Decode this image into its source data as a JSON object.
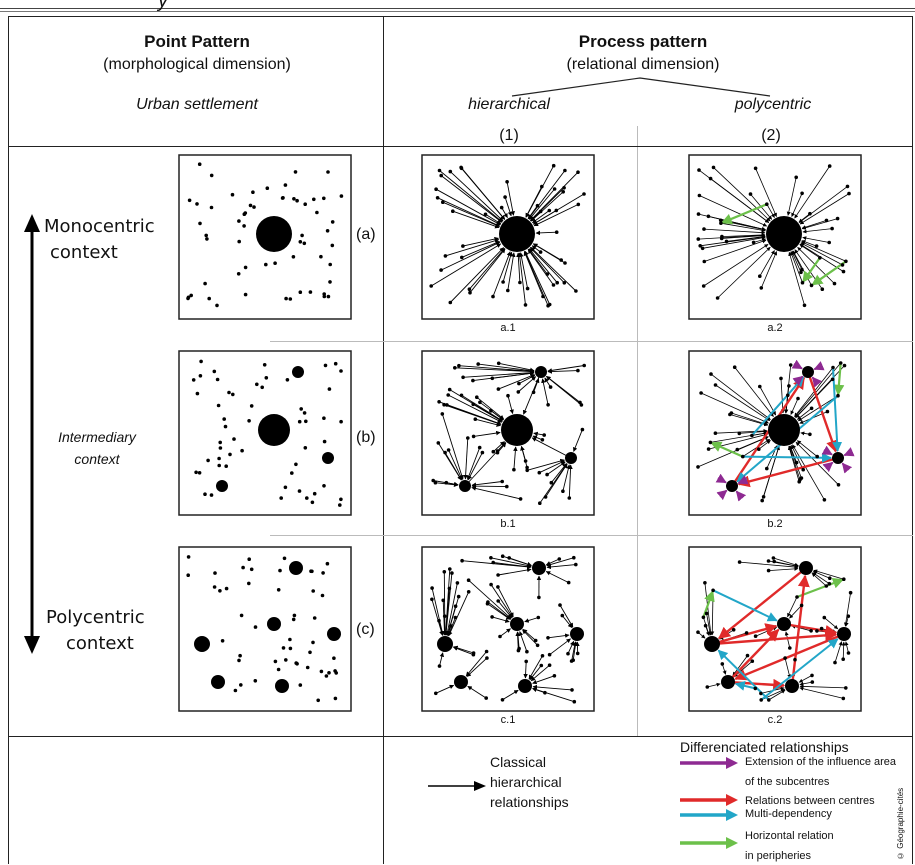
{
  "header": {
    "top_cut_text": "y",
    "point_title": "Point Pattern",
    "point_subtitle": "(morphological dimension)",
    "point_italic": "Urban settlement",
    "process_title": "Process pattern",
    "process_subtitle": "(relational dimension)",
    "hierarchical": "hierarchical",
    "polycentric": "polycentric",
    "col1": "(1)",
    "col2": "(2)"
  },
  "rows": [
    {
      "context_line1": "Monocentric",
      "context_line2": "context",
      "row_label": "(a)",
      "sub1": "a.1",
      "sub2": "a.2"
    },
    {
      "context_line1": "Intermediary",
      "context_line2": "context",
      "row_label": "(b)",
      "sub1": "b.1",
      "sub2": "b.2"
    },
    {
      "context_line1": "Polycentric",
      "context_line2": "context",
      "row_label": "(c)",
      "sub1": "c.1",
      "sub2": "c.2"
    }
  ],
  "legend": {
    "classical_line1": "Classical",
    "classical_line2": "hierarchical",
    "classical_line3": "relationships",
    "diff_title": "Differenciated relationships",
    "item_purple_1": "Extension of the influence area",
    "item_purple_2": "of the subcentres",
    "item_red": "Relations between centres",
    "item_blue": "Multi-dependency",
    "item_green_1": "Horizontal relation",
    "item_green_2": "in peripheries",
    "credit": "© Géographie-cités"
  },
  "colors": {
    "purple": "#8e2a92",
    "red": "#e02a2a",
    "blue": "#22a6c8",
    "green": "#6cc04a",
    "black": "#000000"
  },
  "icons": {
    "context_axis": "double-headed-arrow-icon",
    "classical_arrow": "arrow-right-icon"
  }
}
